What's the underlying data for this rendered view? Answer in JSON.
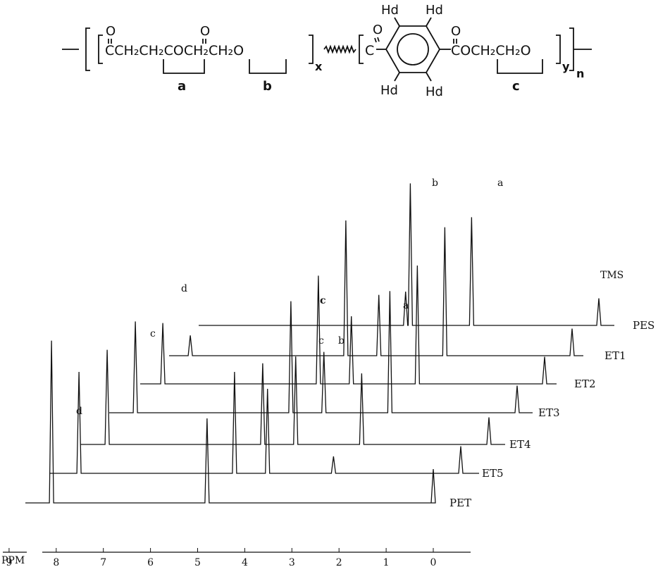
{
  "structure": {
    "atoms": {
      "o1": "O",
      "o2": "O",
      "o3": "O",
      "o4": "O",
      "chain1": "CCH₂CH₂COCH₂CH₂O",
      "chain2_c": "C",
      "chain3": "COCH₂CH₂O",
      "hd_tl": "Hd",
      "hd_tr": "Hd",
      "hd_bl": "Hd",
      "hd_br": "Hd"
    },
    "labels": {
      "a": "a",
      "b": "b",
      "c": "c"
    },
    "subscripts": {
      "x": "x",
      "y": "y",
      "n": "n"
    }
  },
  "chart_data": {
    "type": "line",
    "title": "",
    "xlabel": "PPM",
    "ylabel": "",
    "x_ticks": [
      9,
      8,
      7,
      6,
      5,
      4,
      3,
      2,
      1,
      0
    ],
    "xlim": [
      9.5,
      -0.4
    ],
    "stacked_offset": true,
    "series": [
      {
        "name": "PET",
        "peaks": [
          {
            "ppm": 8.1,
            "height": 4.8,
            "label": "d"
          },
          {
            "ppm": 4.8,
            "height": 2.5
          },
          {
            "ppm": 0.0,
            "height": 1.0
          }
        ]
      },
      {
        "name": "ET5",
        "peaks": [
          {
            "ppm": 8.1,
            "height": 3.0
          },
          {
            "ppm": 4.8,
            "height": 3.0
          },
          {
            "ppm": 4.1,
            "height": 2.5
          },
          {
            "ppm": 2.7,
            "height": 0.5
          },
          {
            "ppm": 0.0,
            "height": 0.8
          }
        ]
      },
      {
        "name": "ET4",
        "peaks": [
          {
            "ppm": 8.1,
            "height": 2.8
          },
          {
            "ppm": 4.8,
            "height": 2.4
          },
          {
            "ppm": 4.1,
            "height": 2.6
          },
          {
            "ppm": 2.7,
            "height": 2.1
          },
          {
            "ppm": 0.0,
            "height": 0.8
          }
        ]
      },
      {
        "name": "ET3",
        "peaks": [
          {
            "ppm": 8.1,
            "height": 2.7
          },
          {
            "ppm": 4.8,
            "height": 3.3
          },
          {
            "ppm": 4.1,
            "height": 1.8
          },
          {
            "ppm": 2.7,
            "height": 3.6
          },
          {
            "ppm": 0.0,
            "height": 0.8
          }
        ]
      },
      {
        "name": "ET2",
        "peaks": [
          {
            "ppm": 8.1,
            "height": 1.8
          },
          {
            "ppm": 4.8,
            "height": 3.2
          },
          {
            "ppm": 4.1,
            "height": 2.0
          },
          {
            "ppm": 2.7,
            "height": 3.5
          },
          {
            "ppm": 0.0,
            "height": 0.8
          }
        ]
      },
      {
        "name": "ET1",
        "peaks": [
          {
            "ppm": 8.1,
            "height": 0.6
          },
          {
            "ppm": 4.8,
            "height": 4.0
          },
          {
            "ppm": 4.1,
            "height": 1.8
          },
          {
            "ppm": 2.7,
            "height": 3.8
          },
          {
            "ppm": 0.0,
            "height": 0.8
          }
        ]
      },
      {
        "name": "PES",
        "peaks": [
          {
            "ppm": 4.1,
            "height": 1.0,
            "label": "c"
          },
          {
            "ppm": 4.0,
            "height": 4.2,
            "label": "b"
          },
          {
            "ppm": 2.7,
            "height": 3.2,
            "label": "a"
          },
          {
            "ppm": 0.0,
            "height": 0.8,
            "label": "TMS"
          }
        ]
      }
    ],
    "annotations": [
      "d",
      "c",
      "c",
      "b",
      "a",
      "b",
      "a",
      "TMS",
      "d",
      "c"
    ]
  }
}
